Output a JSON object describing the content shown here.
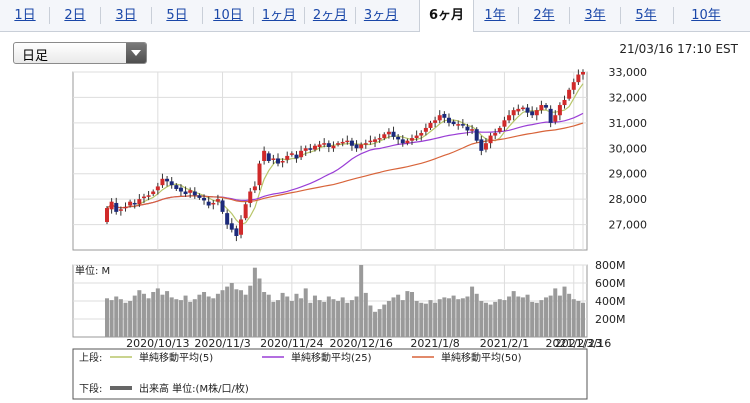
{
  "tabs": [
    {
      "label": "1日",
      "active": false
    },
    {
      "label": "2日",
      "active": false
    },
    {
      "label": "3日",
      "active": false
    },
    {
      "label": "5日",
      "active": false
    },
    {
      "label": "10日",
      "active": false
    },
    {
      "label": "1ヶ月",
      "active": false
    },
    {
      "label": "2ヶ月",
      "active": false
    },
    {
      "label": "3ヶ月",
      "active": false
    },
    {
      "label": "6ヶ月",
      "active": true
    },
    {
      "label": "1年",
      "active": false
    },
    {
      "label": "2年",
      "active": false
    },
    {
      "label": "3年",
      "active": false
    },
    {
      "label": "5年",
      "active": false
    },
    {
      "label": "10年",
      "active": false
    }
  ],
  "period_select": {
    "value": "日足",
    "icon": "chevron-down-icon"
  },
  "timestamp": "21/03/16 17:10 EST",
  "chart_data": {
    "type": "candlestick",
    "price_axis": {
      "ticks": [
        "27,000",
        "28,000",
        "29,000",
        "30,000",
        "31,000",
        "32,000",
        "33,000"
      ],
      "values": [
        27000,
        28000,
        29000,
        30000,
        31000,
        32000,
        33000
      ],
      "ylim": [
        26000,
        33000
      ]
    },
    "volume_axis": {
      "label": "単位: M",
      "ticks": [
        "200M",
        "400M",
        "600M",
        "800M"
      ],
      "values": [
        200,
        400,
        600,
        800
      ],
      "ylim": [
        0,
        800
      ]
    },
    "x_ticks": [
      "2020/10/13",
      "2020/11/3",
      "2020/11/24",
      "2020/12/16",
      "2021/1/8",
      "2021/2/1",
      "2021/2/23",
      "2021/3/16"
    ],
    "colors": {
      "up": "#d02a2a",
      "down": "#1c2a7a",
      "ma5": "#b8c66a",
      "ma25": "#9a3ed6",
      "ma50": "#d8643a",
      "volume": "#9a9a9a"
    },
    "legend": {
      "upper_label": "上段:",
      "lower_label": "下段:",
      "items": [
        {
          "label": "単純移動平均(5)",
          "color": "#b8c66a"
        },
        {
          "label": "単純移動平均(25)",
          "color": "#9a3ed6"
        },
        {
          "label": "単純移動平均(50)",
          "color": "#d8643a"
        }
      ],
      "volume_item": {
        "label": "出来高 単位:(M株/口/枚)",
        "color": "#666666"
      }
    },
    "grid": true,
    "series": {
      "close": [
        27650,
        27900,
        27500,
        27600,
        27700,
        27900,
        27800,
        28000,
        28100,
        28150,
        28300,
        28500,
        28800,
        28700,
        28550,
        28400,
        28300,
        28200,
        28350,
        28150,
        28050,
        27950,
        27750,
        27850,
        28000,
        27500,
        27000,
        26800,
        26550,
        27200,
        27800,
        28300,
        28500,
        29400,
        29900,
        29500,
        29600,
        29400,
        29500,
        29700,
        29800,
        29600,
        29900,
        30000,
        29950,
        30100,
        30150,
        30200,
        30050,
        30100,
        30200,
        30250,
        30300,
        30100,
        30000,
        30150,
        30200,
        30300,
        30350,
        30400,
        30550,
        30650,
        30450,
        30350,
        30200,
        30300,
        30400,
        30500,
        30600,
        30800,
        31000,
        31100,
        31300,
        31200,
        31000,
        30950,
        30950,
        30900,
        30700,
        30750,
        30300,
        29900,
        30200,
        30500,
        30600,
        30800,
        31100,
        31300,
        31500,
        31550,
        31600,
        31400,
        31300,
        31500,
        31700,
        31600,
        31000,
        31300,
        31700,
        31900,
        32300,
        32600,
        32900,
        33000
      ],
      "open": [
        27100,
        27600,
        27850,
        27550,
        27650,
        27750,
        27850,
        27800,
        28050,
        28100,
        28200,
        28350,
        28550,
        28800,
        28700,
        28550,
        28450,
        28300,
        28250,
        28300,
        28150,
        28050,
        27900,
        27800,
        27900,
        27950,
        27450,
        27050,
        26850,
        26600,
        27250,
        27850,
        28350,
        28550,
        29500,
        29800,
        29550,
        29600,
        29450,
        29550,
        29750,
        29750,
        29650,
        29900,
        30000,
        29950,
        30050,
        30150,
        30200,
        30000,
        30150,
        30250,
        30250,
        30300,
        30150,
        30000,
        30150,
        30250,
        30250,
        30350,
        30400,
        30550,
        30650,
        30450,
        30350,
        30200,
        30300,
        30400,
        30500,
        30650,
        30800,
        31000,
        31100,
        31350,
        31200,
        31050,
        30900,
        30950,
        30850,
        30700,
        30750,
        30350,
        29950,
        30200,
        30500,
        30650,
        30850,
        31100,
        31300,
        31450,
        31550,
        31600,
        31450,
        31300,
        31500,
        31700,
        31550,
        31050,
        31300,
        31700,
        31950,
        32300,
        32600,
        32900
      ],
      "volume": [
        430,
        410,
        450,
        420,
        380,
        400,
        460,
        520,
        480,
        430,
        500,
        540,
        470,
        510,
        440,
        420,
        410,
        460,
        390,
        420,
        470,
        500,
        450,
        430,
        480,
        520,
        560,
        600,
        530,
        520,
        470,
        570,
        770,
        650,
        500,
        470,
        390,
        410,
        490,
        450,
        400,
        480,
        430,
        540,
        380,
        460,
        410,
        390,
        450,
        420,
        400,
        440,
        380,
        410,
        450,
        800,
        490,
        350,
        280,
        310,
        360,
        400,
        440,
        470,
        410,
        510,
        500,
        400,
        380,
        370,
        410,
        380,
        420,
        440,
        430,
        460,
        420,
        430,
        450,
        560,
        480,
        400,
        380,
        360,
        390,
        420,
        410,
        450,
        510,
        450,
        440,
        470,
        390,
        380,
        410,
        440,
        460,
        540,
        460,
        560,
        480,
        420,
        400,
        380
      ]
    }
  }
}
